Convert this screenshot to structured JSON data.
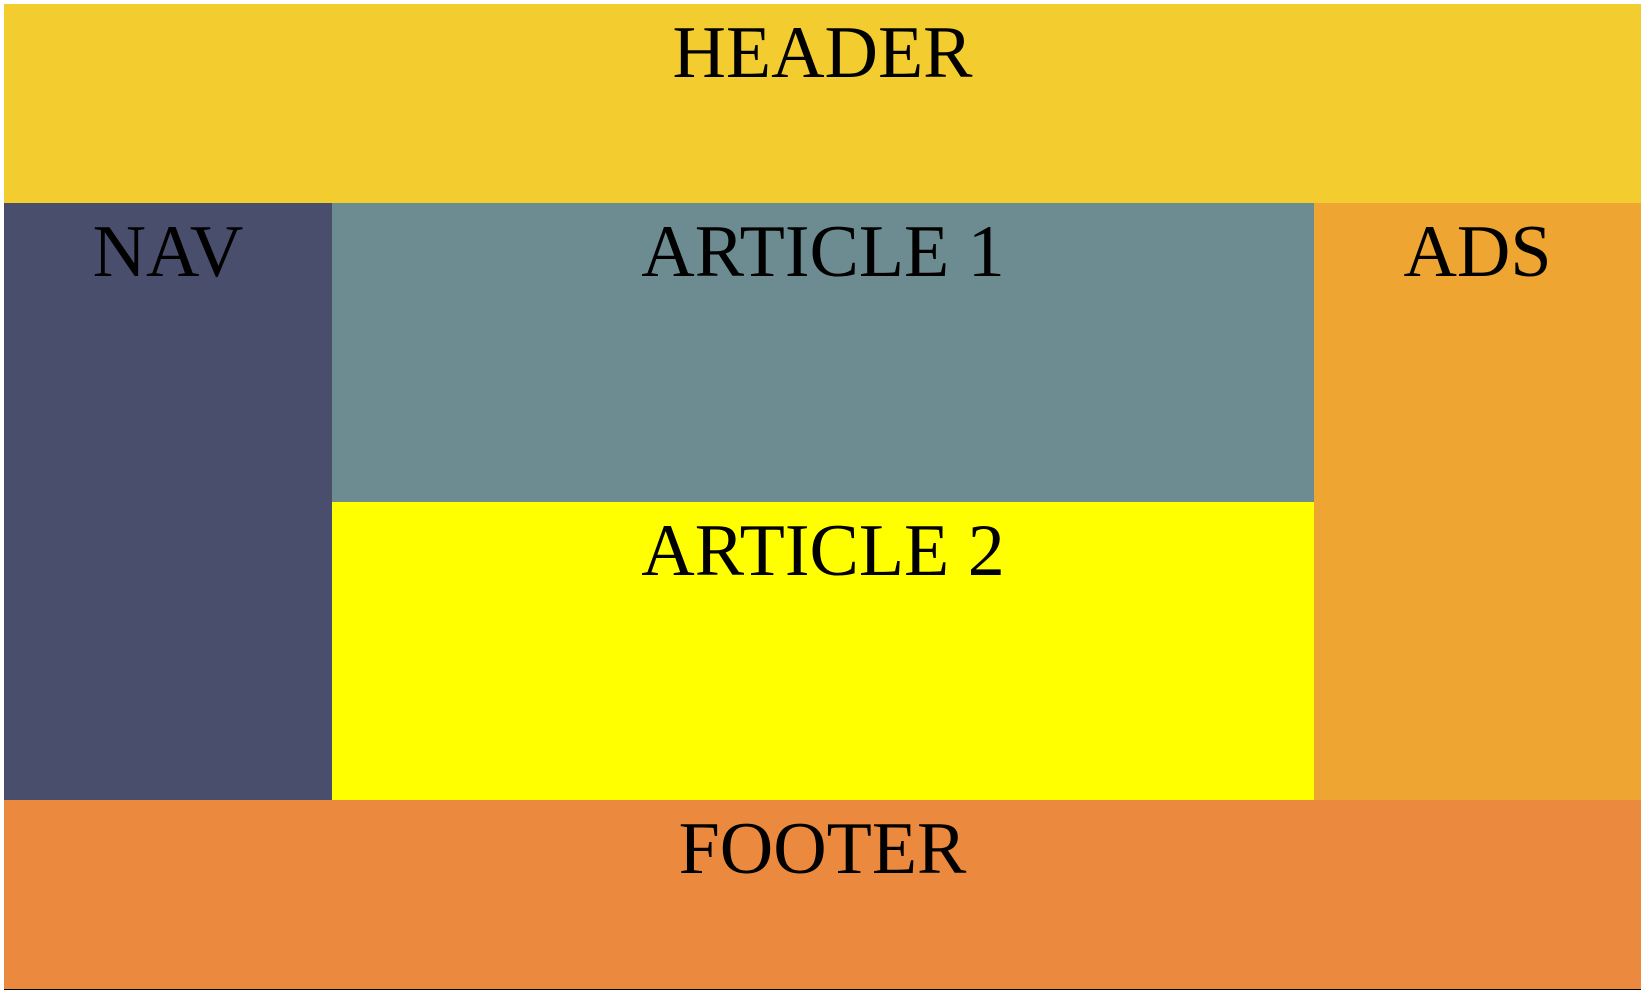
{
  "regions": {
    "header": {
      "label": "HEADER",
      "color": "#f3cc30"
    },
    "nav": {
      "label": "NAV",
      "color": "#4a4e6d"
    },
    "article1": {
      "label": "ARTICLE 1",
      "color": "#6d8c91"
    },
    "article2": {
      "label": "ARTICLE 2",
      "color": "#ffff00"
    },
    "ads": {
      "label": "ADS",
      "color": "#eea532"
    },
    "footer": {
      "label": "FOOTER",
      "color": "#eb8a3e"
    }
  }
}
